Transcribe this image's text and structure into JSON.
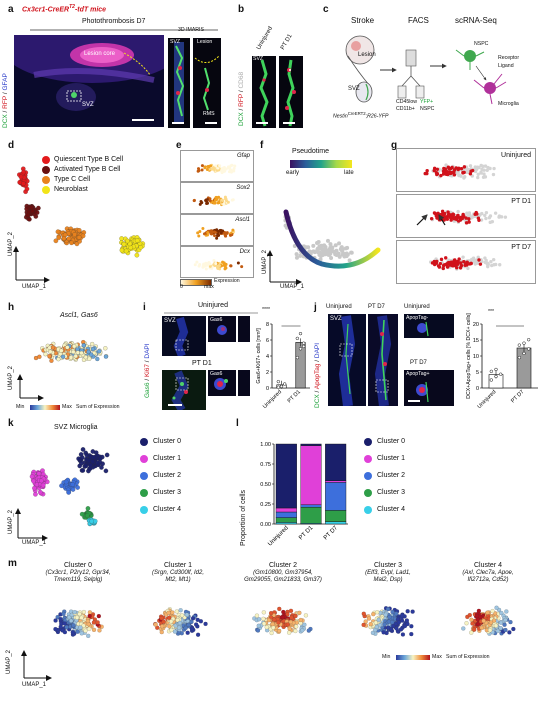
{
  "panel_letters": [
    "a",
    "b",
    "c",
    "d",
    "e",
    "f",
    "g",
    "h",
    "i",
    "j",
    "k",
    "l",
    "m"
  ],
  "a": {
    "title": "Cx3cr1-CreER",
    "title_sup": "T2",
    "title_suffix": "-tdT mice",
    "subtitle": "Photothrombosis D7",
    "stain_dcx": "DCX",
    "stain_rfp": "RFP",
    "stain_gfap": "GFAP",
    "lesion_core": "Lesion core",
    "svz": "SVZ",
    "imaris": "3D IMARIS",
    "svz_small": "SVZ",
    "lesion_small": "Lesion",
    "rms": "RMS"
  },
  "b": {
    "col1": "Uninjured",
    "col2": "PT D1",
    "stain_dcx": "DCX",
    "stain_rfp": "RFP",
    "stain_cd68": "CD68",
    "svz": "SVZ"
  },
  "c": {
    "stroke": "Stroke",
    "facs": "FACS",
    "scrna": "scRNA-Seq",
    "lesion": "Lesion",
    "svz": "SVZ",
    "nestin": "Nestin",
    "nestin_sup": "CreERT2",
    "nestin_suffix": ";R26-YFP",
    "cd45": "CD45low",
    "cd11b": "CD11b+",
    "yfp": "YFP+",
    "nspc_label": "NSPC",
    "nspc": "NSPC",
    "receptor": "Receptor",
    "ligand": "Ligand",
    "microglia": "Microglia"
  },
  "d": {
    "legend": [
      {
        "label": "Quiescent Type B Cell",
        "color": "#e31a1c"
      },
      {
        "label": "Activated Type B Cell",
        "color": "#6b0f0f"
      },
      {
        "label": "Type C Cell",
        "color": "#e8821e"
      },
      {
        "label": "Neuroblast",
        "color": "#f2e418"
      }
    ],
    "y": "UMAP_2",
    "x": "UMAP_1"
  },
  "e": {
    "genes": [
      "Gfap",
      "Sox2",
      "Ascl1",
      "Dcx"
    ],
    "scale_min": "0",
    "scale_max": "max",
    "scale_label": "Expression"
  },
  "f": {
    "title": "Pseudotime",
    "early": "early",
    "late": "late",
    "y": "UMAP_2",
    "x": "UMAP_1"
  },
  "g": {
    "labels": [
      "Uninjured",
      "PT D1",
      "PT D7"
    ]
  },
  "h": {
    "title": "Ascl1, Gas6",
    "y": "UMAP_2",
    "scale_min": "Min",
    "scale_max": "Max",
    "scale_label": "Sum of Expression"
  },
  "i": {
    "uninjured": "Uninjured",
    "ptd1": "PT D1",
    "svz": "SVZ",
    "gas6": "Gas6",
    "gas6_img": "Gas6",
    "ki67": "Ki67",
    "dapi": "DAPI",
    "sig": "****",
    "ylabel": "Gas6+Ki67+ cells [mm³]",
    "yticks": [
      "0",
      "2",
      "4",
      "6",
      "8"
    ],
    "xcats": [
      "Uninjured",
      "PT D1"
    ]
  },
  "j": {
    "uninjured": "Uninjured",
    "ptd7": "PT D7",
    "uninjured_small": "Uninjured",
    "ptd7_small": "PT D7",
    "svz": "SVZ",
    "dcx": "DCX",
    "apoptag": "ApopTag",
    "dapi": "DAPI",
    "apop_img": "ApopTag-",
    "apop_img2": "ApopTag+",
    "sig": "***",
    "ylabel": "DCX+ApopTag+ cells [% DCX+ cells]",
    "yticks": [
      "0",
      "5",
      "10",
      "15",
      "20"
    ],
    "xcats": [
      "Uninjured",
      "PT D7"
    ]
  },
  "k": {
    "title": "SVZ Microglia",
    "clusters": [
      {
        "label": "Cluster 0",
        "color": "#1a1f6b"
      },
      {
        "label": "Cluster 1",
        "color": "#e040d8"
      },
      {
        "label": "Cluster 2",
        "color": "#3d6fdc"
      },
      {
        "label": "Cluster 3",
        "color": "#2e9e48"
      },
      {
        "label": "Cluster 4",
        "color": "#38cfe8"
      }
    ],
    "y": "UMAP_2",
    "x": "UMAP_1"
  },
  "l": {
    "ylabel": "Proportion of cells",
    "yticks": [
      "0.00",
      "0.25",
      "0.50",
      "0.75",
      "1.00"
    ],
    "legend": [
      "Cluster 0",
      "Cluster 1",
      "Cluster 2",
      "Cluster 3",
      "Cluster 4"
    ]
  },
  "m": {
    "panels": [
      {
        "title": "Cluster 0",
        "genes": "(Cx3cr1, P2ry12, Gpr34,",
        "genes2": "Tmem119, Selplg)"
      },
      {
        "title": "Cluster 1",
        "genes": "(Srgn, Cd300lf, Id2,",
        "genes2": "Mt2, Mt1)"
      },
      {
        "title": "Cluster 2",
        "genes": "(Gm10800, Gm37954,",
        "genes2": "Gm29055, Gm21833, Gm37)"
      },
      {
        "title": "Cluster 3",
        "genes": "(Elf3, Evpl, Lad1,",
        "genes2": "Mal2, Dsp)"
      },
      {
        "title": "Cluster 4",
        "genes": "(Axl, Clec7a, Apoe,",
        "genes2": "Ifi2712a, Cd52)"
      }
    ],
    "y": "UMAP_2",
    "x": "UMAP_1",
    "scale_min": "Min",
    "scale_max": "Max",
    "scale_label": "Sum of Expression"
  },
  "chart_data": [
    {
      "type": "bar",
      "categories": [
        "Uninjured",
        "PT D1"
      ],
      "values": [
        0.4,
        5.7
      ],
      "points": [
        [
          0.1,
          0.3,
          0.5,
          0.8,
          0.2
        ],
        [
          3.8,
          4.9,
          5.6,
          6.2,
          6.8,
          5.2
        ]
      ],
      "ylabel": "Gas6+Ki67+ cells [mm³]",
      "ylim": [
        0,
        8
      ]
    },
    {
      "type": "bar",
      "categories": [
        "Uninjured",
        "PT D7"
      ],
      "values": [
        4.2,
        12.5
      ],
      "points": [
        [
          2.5,
          3.6,
          4.3,
          5.2,
          5.8
        ],
        [
          9.5,
          10.8,
          12.2,
          13.4,
          14.0,
          15.1
        ]
      ],
      "ylabel": "DCX+ApopTag+ cells [% DCX+ cells]",
      "ylim": [
        0,
        20
      ]
    },
    {
      "type": "bar",
      "stacked": true,
      "categories": [
        "Uninjured",
        "PT D1",
        "PT D7"
      ],
      "series": [
        {
          "name": "Cluster 4",
          "values": [
            0.02,
            0.01,
            0.03
          ]
        },
        {
          "name": "Cluster 3",
          "values": [
            0.06,
            0.2,
            0.14
          ]
        },
        {
          "name": "Cluster 2",
          "values": [
            0.07,
            0.03,
            0.35
          ]
        },
        {
          "name": "Cluster 1",
          "values": [
            0.05,
            0.74,
            0.02
          ]
        },
        {
          "name": "Cluster 0",
          "values": [
            0.8,
            0.02,
            0.46
          ]
        }
      ],
      "colors": [
        "#38cfe8",
        "#2e9e48",
        "#3d6fdc",
        "#e040d8",
        "#1a1f6b"
      ],
      "ylabel": "Proportion of cells",
      "ylim": [
        0,
        1
      ]
    }
  ]
}
